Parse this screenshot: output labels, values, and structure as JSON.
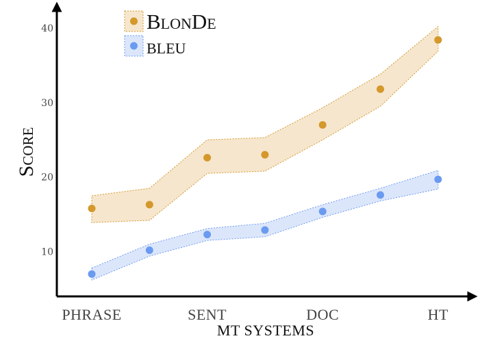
{
  "chart_data": {
    "type": "scatter",
    "xlabel": "MT SYSTEMS",
    "ylabel": "Score",
    "categories": [
      "PHRASE",
      "",
      "SENT",
      "",
      "DOC",
      "",
      "HT"
    ],
    "y_ticks": [
      10,
      20,
      30,
      40
    ],
    "ylim": [
      4,
      41
    ],
    "grid": false,
    "legend_position": "top-left",
    "series": [
      {
        "name": "BlonDe",
        "color": "#D4982B",
        "band_color": "#F6E6CD",
        "values": [
          15.8,
          16.3,
          22.6,
          23.0,
          27.0,
          31.8,
          38.4
        ],
        "band_low": [
          13.9,
          14.2,
          20.5,
          20.8,
          25.0,
          29.5,
          36.9
        ],
        "band_high": [
          17.5,
          18.5,
          25.0,
          25.3,
          29.3,
          33.8,
          40.2
        ]
      },
      {
        "name": "bleu",
        "color": "#6B9BF0",
        "band_color": "#DCE6FB",
        "values": [
          7.0,
          10.2,
          12.3,
          12.9,
          15.4,
          17.6,
          19.7
        ],
        "band_low": [
          6.2,
          9.4,
          11.5,
          12.0,
          14.6,
          16.8,
          18.4
        ],
        "band_high": [
          7.8,
          11.0,
          13.1,
          13.8,
          16.3,
          18.5,
          20.9
        ]
      }
    ]
  }
}
